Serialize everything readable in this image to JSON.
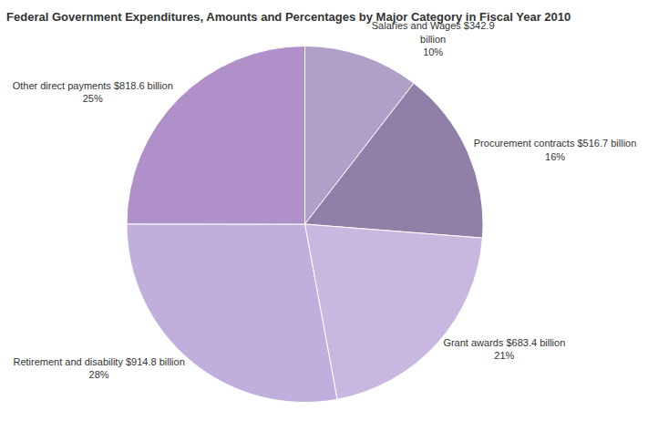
{
  "chart_data": {
    "type": "pie",
    "title": "Federal Government Expenditures, Amounts and Percentages by Major Category in Fiscal Year 2010",
    "categories": [
      "Salaries and Wages $342.9\nbillion\n10%",
      "Procurement contracts $516.7 billion\n16%",
      "Grant awards $683.4 billion\n21%",
      "Retirement and disability $914.8 billion\n28%",
      "Other direct payments $818.6 billion\n25%"
    ],
    "values": [
      342.9,
      516.7,
      683.4,
      914.8,
      818.6
    ],
    "colors": [
      "#b0a0c8",
      "#9080a8",
      "#c8b8e0",
      "#c0aedd",
      "#b090c8"
    ]
  }
}
